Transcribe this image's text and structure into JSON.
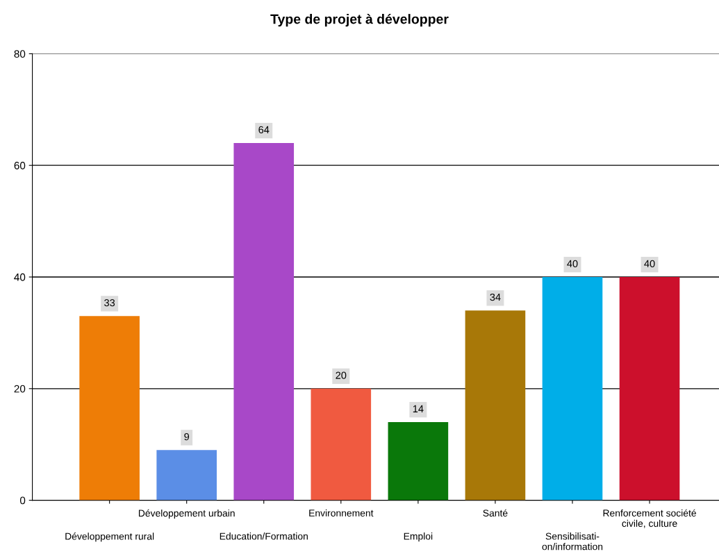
{
  "chart_data": {
    "type": "bar",
    "title": "Type de projet à développer",
    "categories": [
      "Développement rural",
      "Développement urbain",
      "Education/Formation",
      "Environnement",
      "Emploi",
      "Santé",
      "Sensibilisati-\non/information",
      "Renforcement société\ncivile, culture"
    ],
    "values": [
      33,
      9,
      64,
      20,
      14,
      34,
      40,
      40
    ],
    "colors": [
      "#ee7d06",
      "#5b8ee6",
      "#a848c8",
      "#f05a40",
      "#0a780a",
      "#a87808",
      "#00aee8",
      "#cc102c"
    ],
    "ylim": [
      0,
      80
    ],
    "yticks": [
      0,
      20,
      40,
      60,
      80
    ],
    "grid": "y",
    "data_labels": true
  }
}
